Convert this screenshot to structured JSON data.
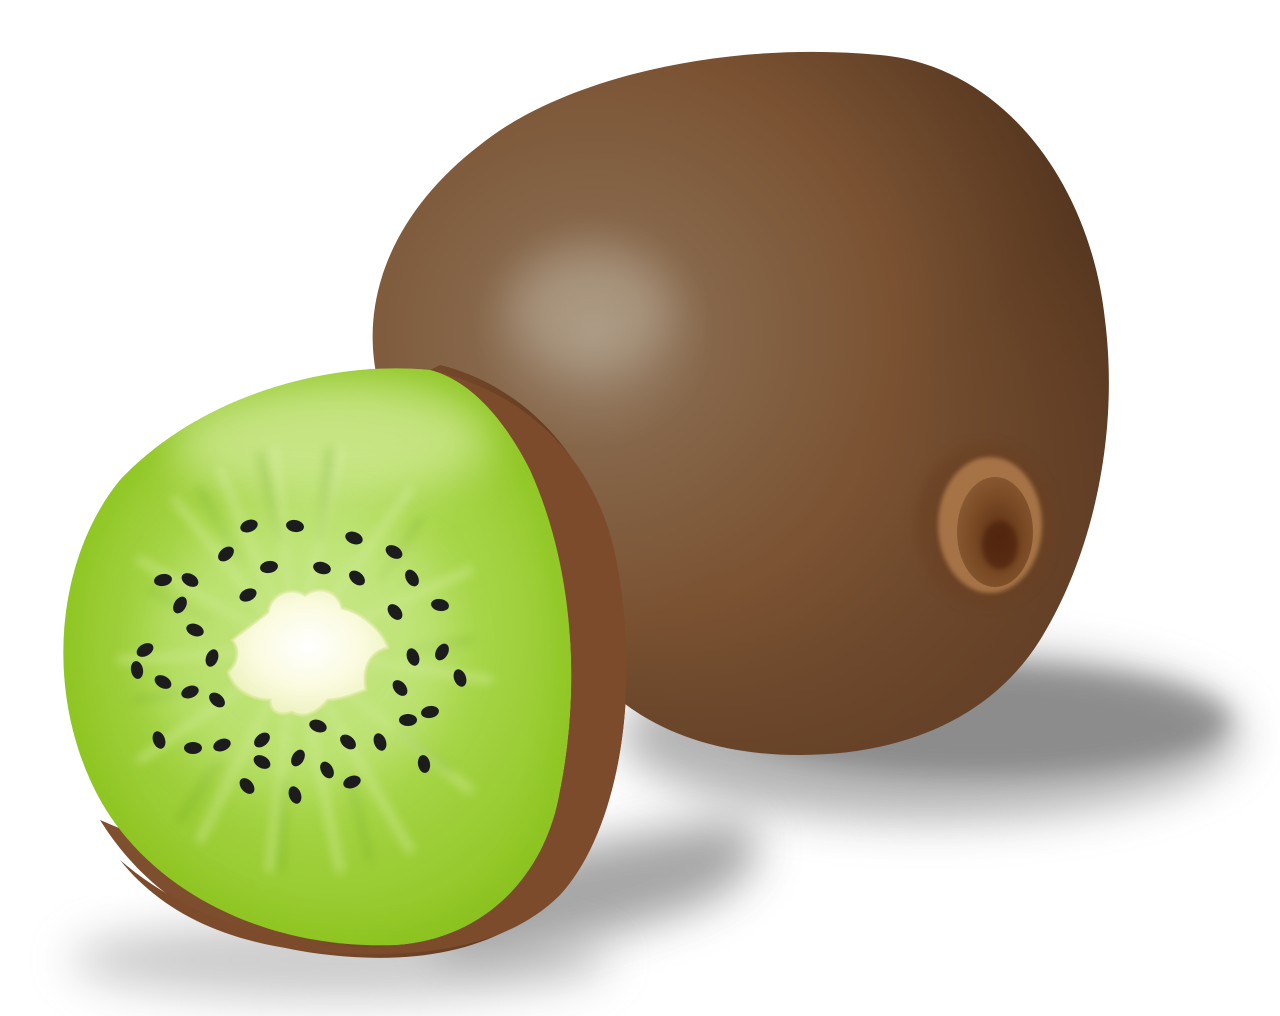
{
  "scene": {
    "subject": "kiwi-fruit-illustration",
    "background_color": "#ffffff",
    "colors": {
      "skin_light": "#9a8770",
      "skin_mid": "#8a5a3a",
      "skin_dark": "#4a2e1a",
      "flesh_light": "#d8eea0",
      "flesh_mid": "#a6d43c",
      "flesh_dark": "#7ab318",
      "core": "#fbfbe2",
      "seed": "#1c1c1c",
      "shadow": "#6e6e6e"
    }
  }
}
